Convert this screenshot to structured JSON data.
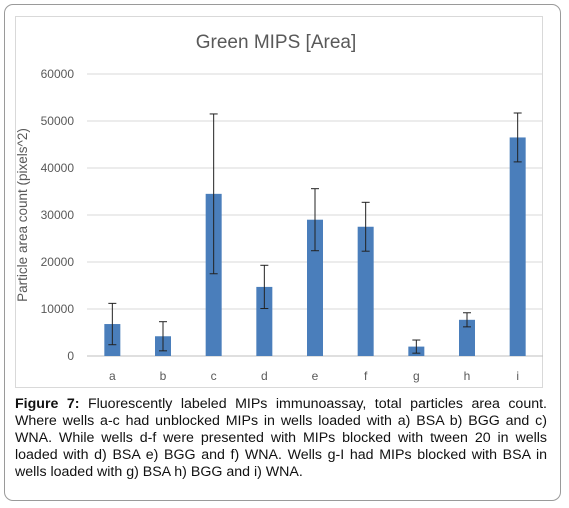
{
  "chart_data": {
    "type": "bar",
    "title": "Green MIPS [Area]",
    "xlabel": "",
    "ylabel": "Particle area count (pixels^2)",
    "categories": [
      "a",
      "b",
      "c",
      "d",
      "e",
      "f",
      "g",
      "h",
      "i"
    ],
    "values": [
      6800,
      4200,
      34500,
      14700,
      29000,
      27500,
      2000,
      7700,
      46500
    ],
    "error": [
      4400,
      3100,
      17000,
      4600,
      6600,
      5200,
      1400,
      1500,
      5200
    ],
    "ylim": [
      0,
      60000
    ],
    "yticks": [
      0,
      10000,
      20000,
      30000,
      40000,
      50000,
      60000
    ],
    "ytick_labels": [
      "0",
      "10000",
      "20000",
      "30000",
      "40000",
      "50000",
      "60000"
    ],
    "grid": true,
    "bar_color": "#4a7ebb"
  },
  "caption": {
    "label": "Figure 7:",
    "text": " Fluorescently labeled MIPs immunoassay, total particles area count. Where wells a-c had unblocked MIPs in wells loaded with a) BSA b) BGG and c) WNA. While wells d-f were presented with MIPs blocked with tween 20 in wells loaded with d) BSA e) BGG and f) WNA. Wells g-I had MIPs blocked with BSA in wells loaded with g) BSA h) BGG and i) WNA."
  }
}
